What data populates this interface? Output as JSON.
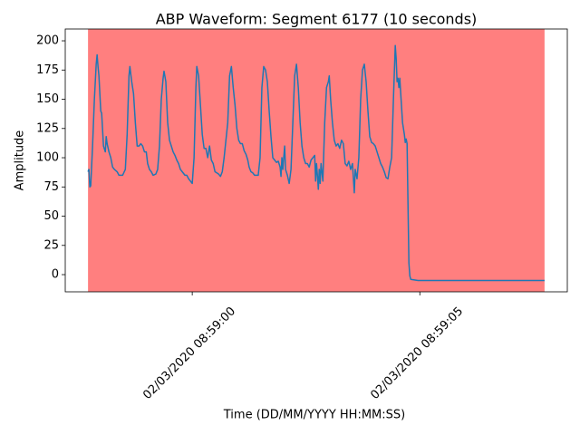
{
  "chart_data": {
    "type": "line",
    "title": "ABP Waveform: Segment 6177 (10 seconds)",
    "x_label": "Time (DD/MM/YYYY HH:MM:SS)",
    "y_label": "Amplitude",
    "x": [
      -2.29,
      -2.27,
      -2.25,
      -2.23,
      -2.19,
      -2.15,
      -2.11,
      -2.09,
      -2.07,
      -2.05,
      -2.01,
      -1.99,
      -1.95,
      -1.91,
      -1.89,
      -1.87,
      -1.83,
      -1.79,
      -1.75,
      -1.71,
      -1.65,
      -1.61,
      -1.53,
      -1.47,
      -1.43,
      -1.39,
      -1.37,
      -1.33,
      -1.29,
      -1.25,
      -1.21,
      -1.17,
      -1.13,
      -1.09,
      -1.05,
      -1.01,
      -0.98,
      -0.94,
      -0.9,
      -0.86,
      -0.8,
      -0.76,
      -0.72,
      -0.68,
      -0.64,
      -0.62,
      -0.58,
      -0.54,
      -0.5,
      -0.46,
      -0.42,
      -0.38,
      -0.34,
      -0.3,
      -0.26,
      -0.22,
      -0.16,
      -0.12,
      -0.08,
      -0.04,
      0,
      0.04,
      0.08,
      0.1,
      0.14,
      0.18,
      0.22,
      0.26,
      0.3,
      0.34,
      0.38,
      0.42,
      0.46,
      0.5,
      0.54,
      0.58,
      0.62,
      0.66,
      0.7,
      0.78,
      0.82,
      0.86,
      0.9,
      0.94,
      0.98,
      1.02,
      1.06,
      1.1,
      1.14,
      1.18,
      1.22,
      1.25,
      1.29,
      1.33,
      1.37,
      1.45,
      1.49,
      1.53,
      1.57,
      1.61,
      1.65,
      1.69,
      1.73,
      1.77,
      1.81,
      1.85,
      1.89,
      1.93,
      1.95,
      1.97,
      1.99,
      2.03,
      2.05,
      2.09,
      2.13,
      2.17,
      2.21,
      2.25,
      2.29,
      2.33,
      2.37,
      2.41,
      2.45,
      2.49,
      2.53,
      2.57,
      2.61,
      2.65,
      2.69,
      2.71,
      2.73,
      2.75,
      2.77,
      2.79,
      2.81,
      2.83,
      2.87,
      2.91,
      2.95,
      2.99,
      3.01,
      3.04,
      3.08,
      3.12,
      3.16,
      3.2,
      3.24,
      3.28,
      3.32,
      3.36,
      3.4,
      3.44,
      3.48,
      3.52,
      3.56,
      3.58,
      3.62,
      3.66,
      3.7,
      3.74,
      3.78,
      3.82,
      3.86,
      3.9,
      3.94,
      3.98,
      4.02,
      4.06,
      4.1,
      4.14,
      4.18,
      4.22,
      4.26,
      4.3,
      4.34,
      4.38,
      4.42,
      4.46,
      4.48,
      4.5,
      4.52,
      4.54,
      4.56,
      4.58,
      4.62,
      4.66,
      4.68,
      4.7,
      4.72,
      4.74,
      4.76,
      4.78,
      4.8,
      4.96,
      7.74
    ],
    "values": [
      88,
      90,
      75,
      76,
      110,
      150,
      180,
      188,
      178,
      170,
      140,
      138,
      110,
      105,
      118,
      112,
      105,
      100,
      92,
      90,
      88,
      85,
      85,
      90,
      120,
      170,
      178,
      165,
      155,
      130,
      110,
      110,
      112,
      110,
      105,
      105,
      95,
      90,
      88,
      85,
      86,
      90,
      110,
      150,
      168,
      174,
      165,
      130,
      115,
      110,
      105,
      102,
      98,
      95,
      90,
      88,
      85,
      85,
      82,
      80,
      78,
      100,
      160,
      178,
      170,
      145,
      120,
      108,
      108,
      100,
      110,
      98,
      95,
      88,
      87,
      86,
      84,
      88,
      100,
      130,
      170,
      178,
      160,
      145,
      125,
      115,
      112,
      112,
      106,
      103,
      98,
      92,
      88,
      87,
      85,
      85,
      100,
      160,
      178,
      175,
      165,
      140,
      118,
      100,
      98,
      96,
      97,
      92,
      84,
      100,
      90,
      110,
      90,
      85,
      78,
      90,
      130,
      170,
      180,
      160,
      130,
      110,
      100,
      95,
      95,
      92,
      98,
      100,
      102,
      80,
      95,
      85,
      73,
      90,
      78,
      95,
      80,
      130,
      160,
      165,
      170,
      150,
      130,
      115,
      110,
      112,
      108,
      115,
      112,
      95,
      93,
      97,
      90,
      95,
      70,
      90,
      82,
      100,
      150,
      175,
      180,
      165,
      140,
      118,
      113,
      112,
      110,
      105,
      100,
      95,
      92,
      88,
      83,
      82,
      92,
      100,
      150,
      196,
      185,
      165,
      168,
      160,
      168,
      155,
      130,
      120,
      113,
      116,
      112,
      60,
      10,
      -1,
      -4,
      -5,
      -5
    ],
    "color": "#1f77b4",
    "shaded_span": {
      "xmin": -2.29,
      "xmax": 7.74,
      "color": "#ff0000",
      "alpha": 0.5
    },
    "xlim": [
      -2.79,
      8.24
    ],
    "xticks": [
      {
        "value": 0,
        "label": "02/03/2020 08:59:00"
      },
      {
        "value": 5,
        "label": "02/03/2020 08:59:05"
      }
    ],
    "ylim": [
      -14.7,
      210.1
    ],
    "yticks": [
      0,
      25,
      50,
      75,
      100,
      125,
      150,
      175,
      200
    ],
    "grid": false
  }
}
